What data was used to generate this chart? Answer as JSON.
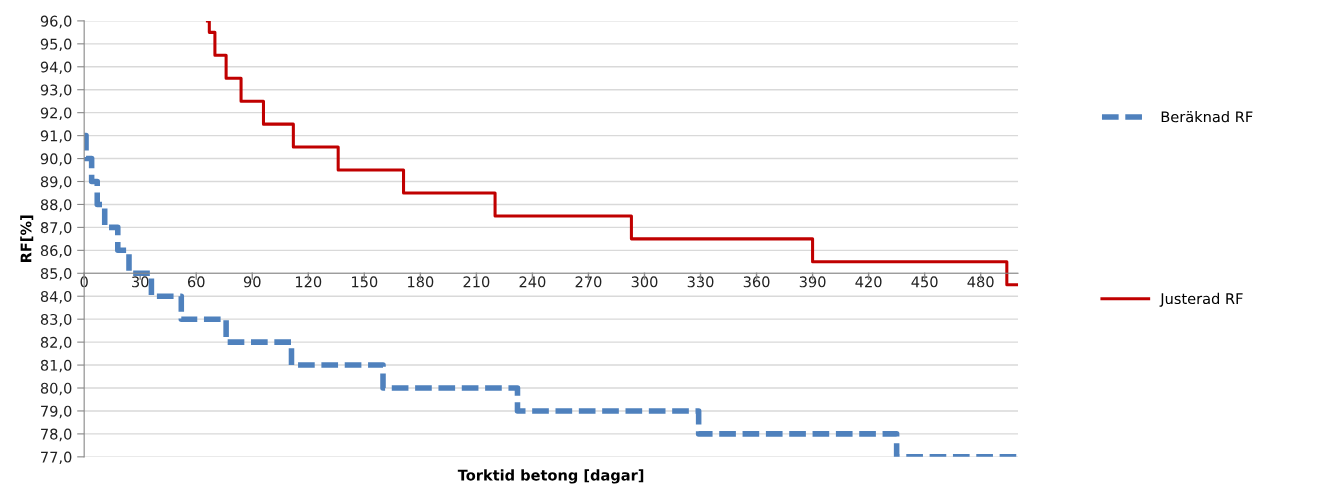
{
  "chart_data": {
    "type": "step",
    "xlabel": "Torktid betong [dagar]",
    "ylabel": "RF[%]",
    "xlim": [
      0,
      500
    ],
    "xticks": [
      0,
      30,
      60,
      90,
      120,
      150,
      180,
      210,
      240,
      270,
      300,
      330,
      360,
      390,
      420,
      450,
      480
    ],
    "ylim": [
      77,
      96
    ],
    "yticks": [
      {
        "value": 77,
        "label": "77,0"
      },
      {
        "value": 78,
        "label": "78,0"
      },
      {
        "value": 79,
        "label": "79,0"
      },
      {
        "value": 80,
        "label": "80,0"
      },
      {
        "value": 81,
        "label": "81,0"
      },
      {
        "value": 82,
        "label": "82,0"
      },
      {
        "value": 83,
        "label": "83,0"
      },
      {
        "value": 84,
        "label": "84,0"
      },
      {
        "value": 85,
        "label": "85,0"
      },
      {
        "value": 86,
        "label": "86,0"
      },
      {
        "value": 87,
        "label": "87,0"
      },
      {
        "value": 88,
        "label": "88,0"
      },
      {
        "value": 89,
        "label": "89,0"
      },
      {
        "value": 90,
        "label": "90,0"
      },
      {
        "value": 91,
        "label": "91,0"
      },
      {
        "value": 92,
        "label": "92,0"
      },
      {
        "value": 93,
        "label": "93,0"
      },
      {
        "value": 94,
        "label": "94,0"
      },
      {
        "value": 95,
        "label": "95,0"
      },
      {
        "value": 96,
        "label": "96,0"
      }
    ],
    "grid": "y",
    "legend": "right",
    "series": [
      {
        "name": "Beräknad RF",
        "color": "#4f81bd",
        "line_style": "dashed",
        "x": [
          0,
          1,
          4,
          7,
          11,
          18,
          24,
          36,
          52,
          76,
          111,
          160,
          232,
          329,
          435,
          500
        ],
        "values": [
          91,
          90,
          89,
          88,
          87,
          86,
          85,
          84,
          83,
          82,
          81,
          80,
          79,
          78,
          77,
          77
        ]
      },
      {
        "name": "Justerad RF",
        "color": "#c00000",
        "line_style": "solid",
        "x": [
          66,
          67,
          70,
          76,
          84,
          96,
          112,
          136,
          171,
          220,
          293,
          390,
          494,
          500
        ],
        "values": [
          96,
          95.5,
          94.5,
          93.5,
          92.5,
          91.5,
          90.5,
          89.5,
          88.5,
          87.5,
          86.5,
          85.5,
          84.5,
          84.5
        ]
      }
    ]
  }
}
